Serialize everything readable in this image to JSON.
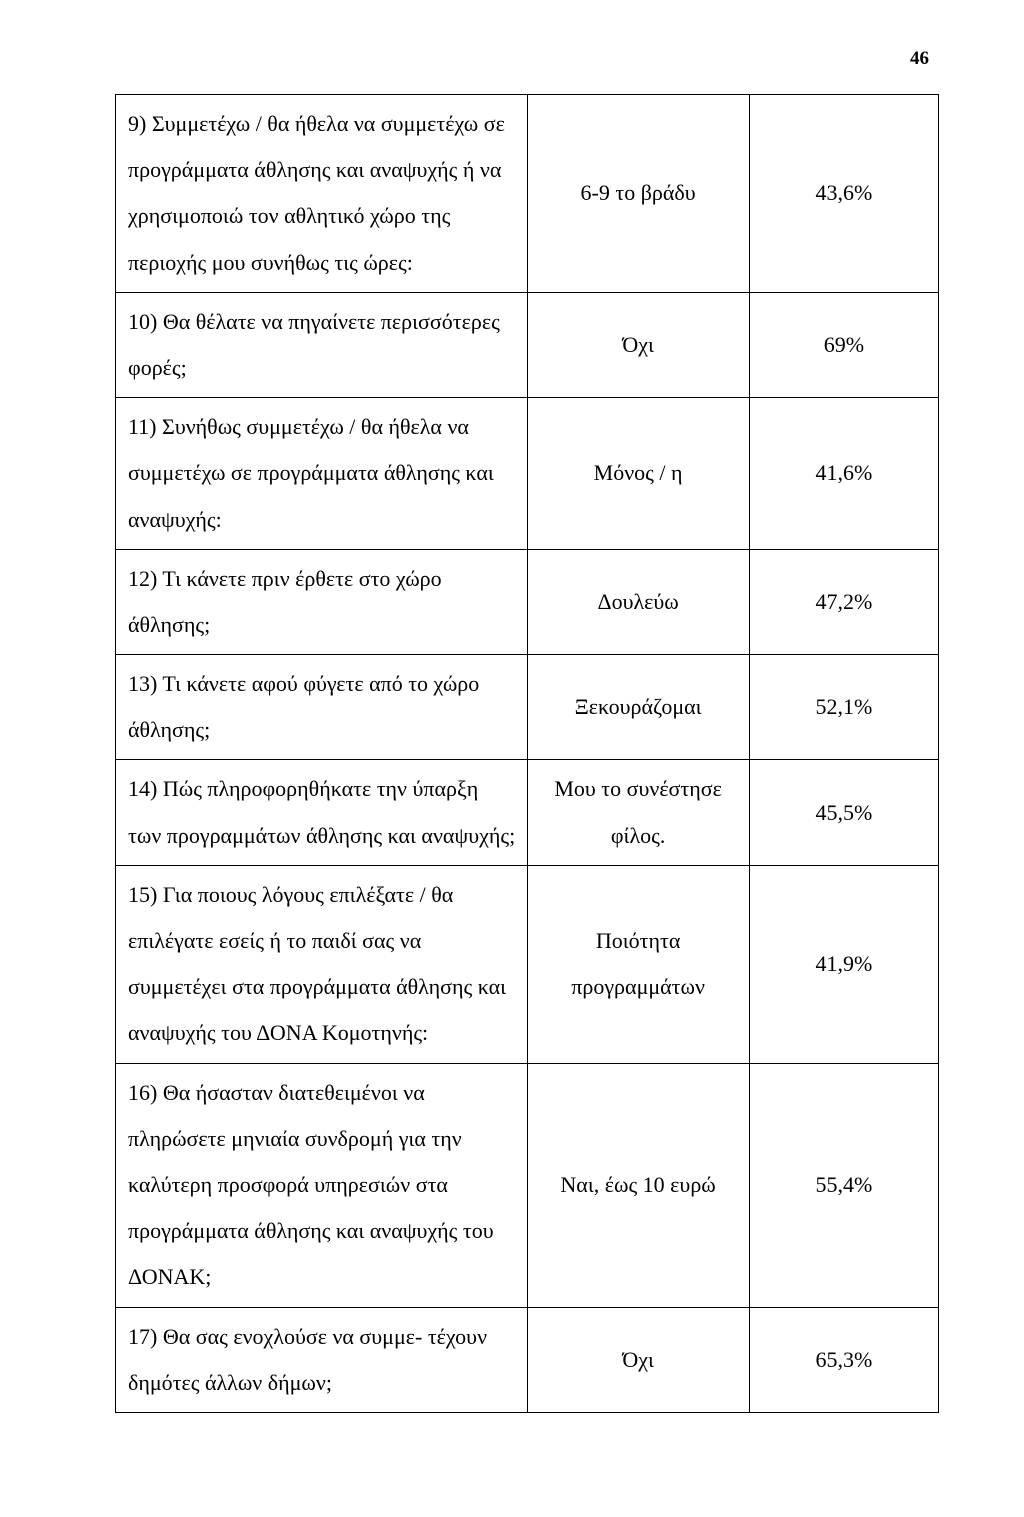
{
  "page_number": "46",
  "rows": [
    {
      "question": "9) Συμμετέχω / θα ήθελα να συμμετέχω σε προγράμματα άθλησης και αναψυχής ή να χρησιμοποιώ τον αθλητικό χώρο της περιοχής μου συνήθως τις ώρες:",
      "answer": "6-9 το βράδυ",
      "percent": "43,6%"
    },
    {
      "question": "10) Θα θέλατε να πηγαίνετε περισσότερες φορές;",
      "answer": "Όχι",
      "percent": "69%"
    },
    {
      "question": "11) Συνήθως συμμετέχω / θα ήθελα να συμμετέχω σε προγράμματα άθλησης και αναψυχής:",
      "answer": "Μόνος / η",
      "percent": "41,6%"
    },
    {
      "question": "12) Τι κάνετε πριν έρθετε στο χώρο άθλησης;",
      "answer": "Δουλεύω",
      "percent": "47,2%"
    },
    {
      "question": "13) Τι κάνετε αφού φύγετε από το χώρο άθλησης;",
      "answer": "Ξεκουράζομαι",
      "percent": "52,1%"
    },
    {
      "question": "14) Πώς πληροφορηθήκατε την ύπαρξη των προγραμμάτων άθλησης και αναψυχής;",
      "answer": "Μου το συνέστησε φίλος.",
      "percent": "45,5%"
    },
    {
      "question": "15) Για ποιους λόγους επιλέξατε / θα επιλέγατε εσείς ή το παιδί σας να συμμετέχει στα προγράμματα άθλησης και αναψυχής του ΔΟΝΑ Κομοτηνής:",
      "answer": "Ποιότητα προγραμμάτων",
      "percent": "41,9%"
    },
    {
      "question": "16) Θα ήσασταν διατεθειμένοι να πληρώσετε μηνιαία συνδρομή για την καλύτερη προσφορά υπηρεσιών στα προγράμματα άθλησης και αναψυχής του ΔΟΝΑΚ;",
      "answer": "Ναι, έως 10 ευρώ",
      "percent": "55,4%"
    },
    {
      "question": "17) Θα σας ενοχλούσε να συμμε- τέχουν δημότες άλλων δήμων;",
      "answer": "Όχι",
      "percent": "65,3%"
    }
  ]
}
